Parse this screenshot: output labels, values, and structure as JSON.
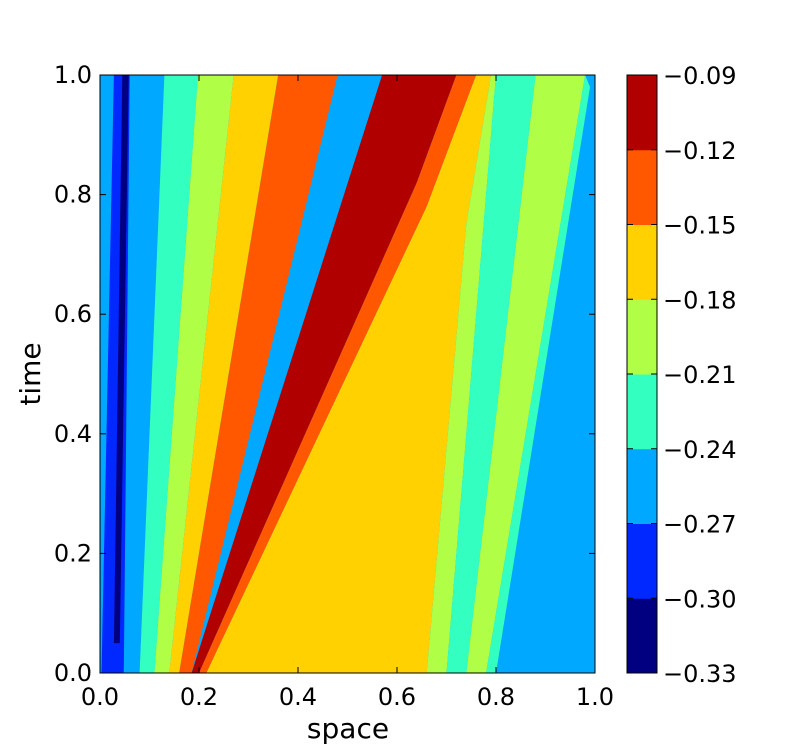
{
  "chart_data": {
    "type": "contourf",
    "title": "",
    "xlabel": "space",
    "ylabel": "time",
    "xlim": [
      0.0,
      1.0
    ],
    "ylim": [
      0.0,
      1.0
    ],
    "xticks": [
      "0.0",
      "0.2",
      "0.4",
      "0.6",
      "0.8",
      "1.0"
    ],
    "yticks": [
      "0.0",
      "0.2",
      "0.4",
      "0.6",
      "0.8",
      "1.0"
    ],
    "levels": [
      -0.33,
      -0.3,
      -0.27,
      -0.24,
      -0.21,
      -0.18,
      -0.15,
      -0.12,
      -0.09
    ],
    "colorbar_ticks": [
      "−0.33",
      "−0.30",
      "−0.27",
      "−0.24",
      "−0.21",
      "−0.18",
      "−0.15",
      "−0.12",
      "−0.09"
    ],
    "colors": [
      "#000080",
      "#0028ff",
      "#00a8ff",
      "#33ffc0",
      "#b0ff46",
      "#ffd100",
      "#ff5800",
      "#b10000"
    ],
    "regions": [
      {
        "band": 1,
        "polygon": [
          [
            0.003,
            0
          ],
          [
            0.048,
            0
          ],
          [
            0.06,
            1
          ],
          [
            0.028,
            1
          ]
        ]
      },
      {
        "band": 0,
        "polygon": [
          [
            0.028,
            0.05
          ],
          [
            0.04,
            0.05
          ],
          [
            0.058,
            1
          ],
          [
            0.045,
            1
          ]
        ]
      },
      {
        "band": 2,
        "polygon": [
          [
            0.048,
            0
          ],
          [
            0.08,
            0
          ],
          [
            0.13,
            1
          ],
          [
            0.072,
            1
          ]
        ]
      },
      {
        "band": 3,
        "polygon": [
          [
            0.08,
            0
          ],
          [
            0.11,
            0
          ],
          [
            0.198,
            1
          ],
          [
            0.13,
            1
          ]
        ]
      },
      {
        "band": 4,
        "polygon": [
          [
            0.11,
            0
          ],
          [
            0.14,
            0
          ],
          [
            0.27,
            1
          ],
          [
            0.198,
            1
          ]
        ]
      },
      {
        "band": 5,
        "polygon": [
          [
            0.14,
            0
          ],
          [
            0.16,
            0
          ],
          [
            0.36,
            1
          ],
          [
            0.27,
            1
          ]
        ]
      },
      {
        "band": 6,
        "polygon": [
          [
            0.16,
            0
          ],
          [
            0.185,
            0
          ],
          [
            0.48,
            1
          ],
          [
            0.36,
            1
          ]
        ]
      },
      {
        "band": 7,
        "polygon": [
          [
            0.185,
            0
          ],
          [
            0.2,
            0
          ],
          [
            0.64,
            0.82
          ],
          [
            0.72,
            1
          ],
          [
            0.57,
            1
          ]
        ]
      },
      {
        "band": 6,
        "polygon": [
          [
            0.2,
            0
          ],
          [
            0.215,
            0
          ],
          [
            0.66,
            0.78
          ],
          [
            0.76,
            1
          ],
          [
            0.72,
            1
          ],
          [
            0.64,
            0.82
          ]
        ]
      },
      {
        "band": 5,
        "polygon": [
          [
            0.215,
            0
          ],
          [
            0.66,
            0
          ],
          [
            0.74,
            0.75
          ],
          [
            0.79,
            1
          ],
          [
            0.76,
            1
          ],
          [
            0.66,
            0.78
          ]
        ]
      },
      {
        "band": 4,
        "polygon": [
          [
            0.66,
            0
          ],
          [
            0.7,
            0
          ],
          [
            0.8,
            1
          ],
          [
            0.79,
            1
          ],
          [
            0.74,
            0.75
          ]
        ]
      },
      {
        "band": 3,
        "polygon": [
          [
            0.7,
            0
          ],
          [
            0.74,
            0
          ],
          [
            0.88,
            1
          ],
          [
            0.8,
            1
          ]
        ]
      },
      {
        "band": 4,
        "polygon": [
          [
            0.74,
            0
          ],
          [
            0.78,
            0
          ],
          [
            0.98,
            1
          ],
          [
            0.88,
            1
          ]
        ]
      },
      {
        "band": 3,
        "polygon": [
          [
            0.78,
            0
          ],
          [
            0.8,
            0
          ],
          [
            0.99,
            0.98
          ],
          [
            0.98,
            1
          ]
        ]
      }
    ]
  }
}
